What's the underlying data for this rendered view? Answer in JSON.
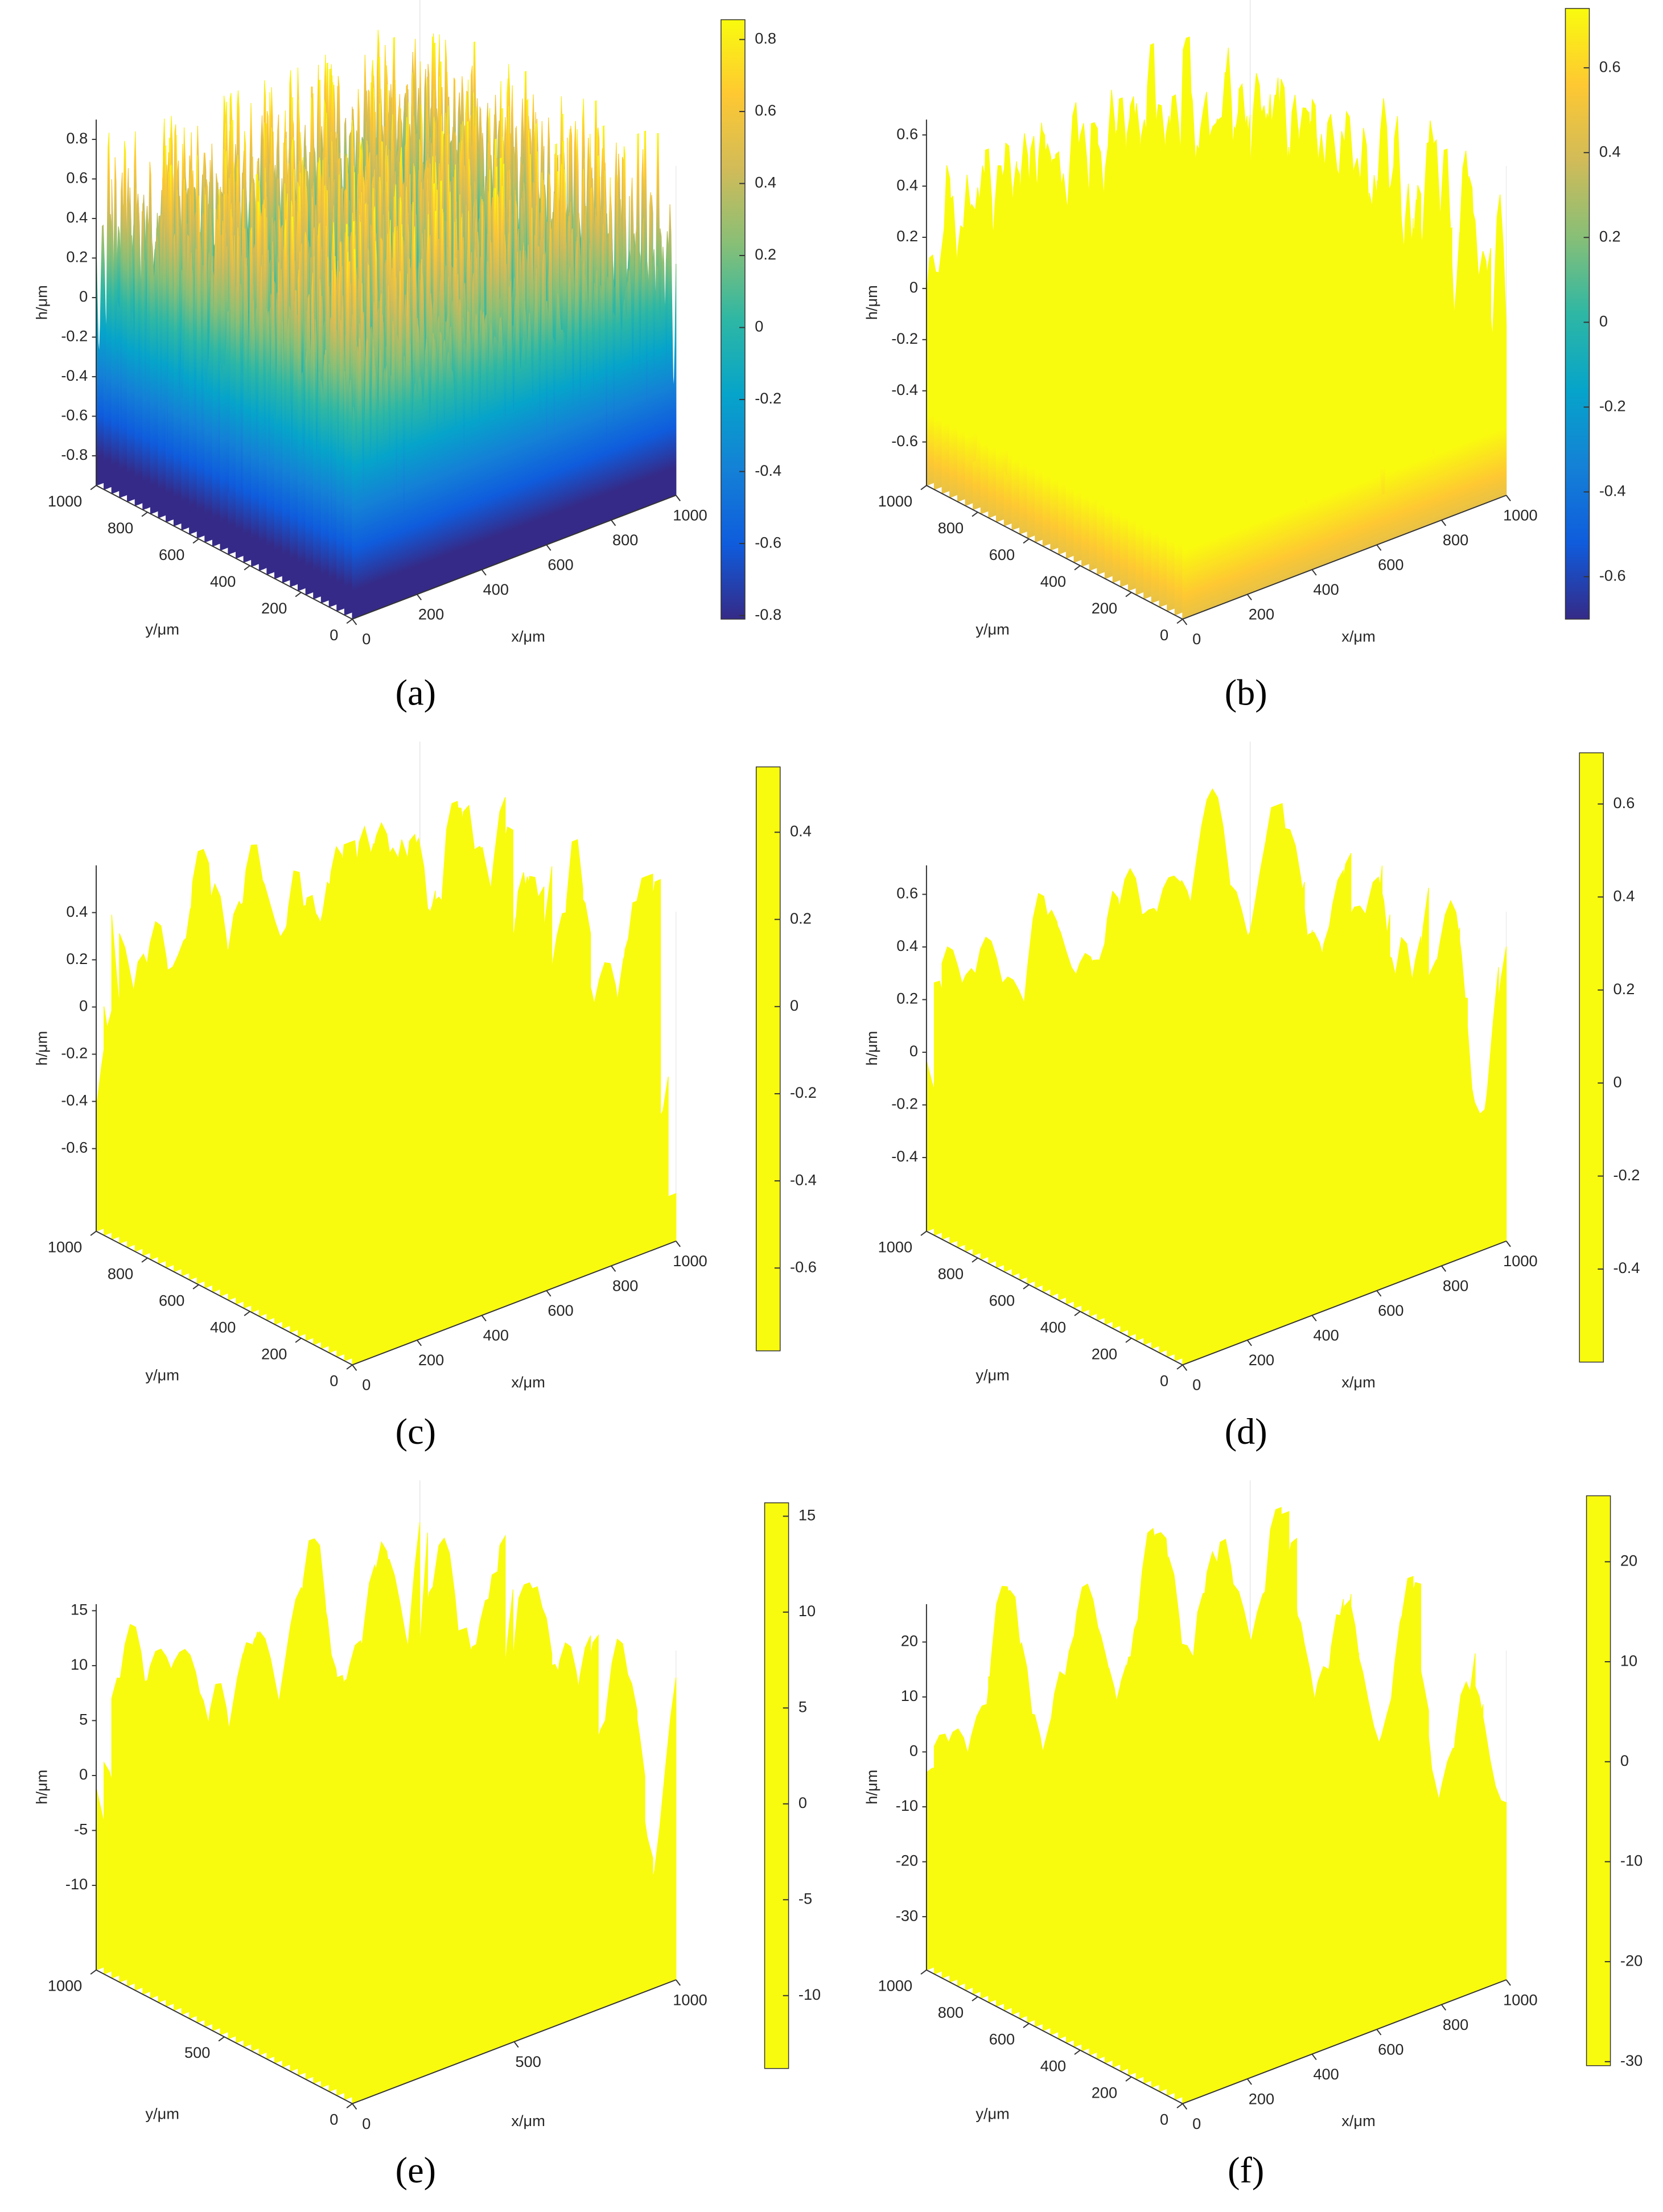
{
  "chart_data": [
    {
      "type": "surface",
      "caption": "(a)",
      "xlabel": "x/μm",
      "ylabel": "y/μm",
      "zlabel": "h/μm",
      "colormap": "parula",
      "xlim": [
        0,
        1000
      ],
      "xticks": [
        0,
        200,
        400,
        600,
        800,
        1000
      ],
      "ylim": [
        0,
        1000
      ],
      "yticks": [
        0,
        200,
        400,
        600,
        800,
        1000
      ],
      "zlim": [
        -0.95,
        0.9
      ],
      "zticks": [
        -0.8,
        -0.6,
        -0.4,
        -0.2,
        0,
        0.2,
        0.4,
        0.6,
        0.8
      ],
      "clim": [
        -0.81,
        0.855
      ],
      "cticks": [
        -0.8,
        -0.6,
        -0.4,
        -0.2,
        0,
        0.2,
        0.4,
        0.6,
        0.8
      ]
    },
    {
      "type": "surface",
      "caption": "(b)",
      "xlabel": "x/μm",
      "ylabel": "y/μm",
      "zlabel": "h/μm",
      "colormap": "parula",
      "xlim": [
        0,
        1000
      ],
      "xticks": [
        0,
        200,
        400,
        600,
        800,
        1000
      ],
      "ylim": [
        0,
        1000
      ],
      "yticks": [
        0,
        200,
        400,
        600,
        800,
        1000
      ],
      "zlim": [
        -0.77,
        0.66
      ],
      "zticks": [
        -0.6,
        -0.4,
        -0.2,
        0,
        0.2,
        0.4,
        0.6
      ],
      "clim": [
        -0.7,
        0.74
      ],
      "cticks": [
        -0.6,
        -0.4,
        -0.2,
        0,
        0.2,
        0.4,
        0.6
      ]
    },
    {
      "type": "surface",
      "caption": "(c)",
      "xlabel": "x/μm",
      "ylabel": "y/μm",
      "zlabel": "h/μm",
      "colormap": "parula",
      "xlim": [
        0,
        1000
      ],
      "xticks": [
        0,
        200,
        400,
        600,
        800,
        1000
      ],
      "ylim": [
        0,
        1000
      ],
      "yticks": [
        0,
        200,
        400,
        600,
        800,
        1000
      ],
      "zlim": [
        -0.95,
        0.6
      ],
      "zticks": [
        -0.6,
        -0.4,
        -0.2,
        0,
        0.2,
        0.4
      ],
      "clim": [
        -0.79,
        0.55
      ],
      "cticks": [
        -0.6,
        -0.4,
        -0.2,
        0,
        0.2,
        0.4
      ]
    },
    {
      "type": "surface",
      "caption": "(d)",
      "xlabel": "x/μm",
      "ylabel": "y/μm",
      "zlabel": "h/μm",
      "colormap": "parula",
      "xlim": [
        0,
        1000
      ],
      "xticks": [
        0,
        200,
        400,
        600,
        800,
        1000
      ],
      "ylim": [
        0,
        1000
      ],
      "yticks": [
        0,
        200,
        400,
        600,
        800,
        1000
      ],
      "zlim": [
        -0.68,
        0.71
      ],
      "zticks": [
        -0.4,
        -0.2,
        0,
        0.2,
        0.4,
        0.6
      ],
      "clim": [
        -0.6,
        0.71
      ],
      "cticks": [
        -0.4,
        -0.2,
        0,
        0.2,
        0.4,
        0.6
      ]
    },
    {
      "type": "surface",
      "caption": "(e)",
      "xlabel": "x/μm",
      "ylabel": "y/μm",
      "zlabel": "h/μm",
      "colormap": "parula",
      "xlim": [
        0,
        1000
      ],
      "xticks": [
        0,
        500,
        1000
      ],
      "ylim": [
        0,
        1000
      ],
      "yticks": [
        0,
        500,
        1000
      ],
      "zlim": [
        -17.7,
        15.6
      ],
      "zticks": [
        -10,
        -5,
        0,
        5,
        10,
        15
      ],
      "clim": [
        -13.8,
        15.7
      ],
      "cticks": [
        -10,
        -5,
        0,
        5,
        10,
        15
      ]
    },
    {
      "type": "surface",
      "caption": "(f)",
      "xlabel": "x/μm",
      "ylabel": "y/μm",
      "zlabel": "h/μm",
      "colormap": "parula",
      "xlim": [
        0,
        1000
      ],
      "xticks": [
        0,
        200,
        400,
        600,
        800,
        1000
      ],
      "ylim": [
        0,
        1000
      ],
      "yticks": [
        0,
        200,
        400,
        600,
        800,
        1000
      ],
      "zlim": [
        -39.7,
        26.9
      ],
      "zticks": [
        -30,
        -20,
        -10,
        0,
        10,
        20
      ],
      "clim": [
        -30.4,
        26.6
      ],
      "cticks": [
        -30,
        -20,
        -10,
        0,
        10,
        20
      ]
    }
  ]
}
